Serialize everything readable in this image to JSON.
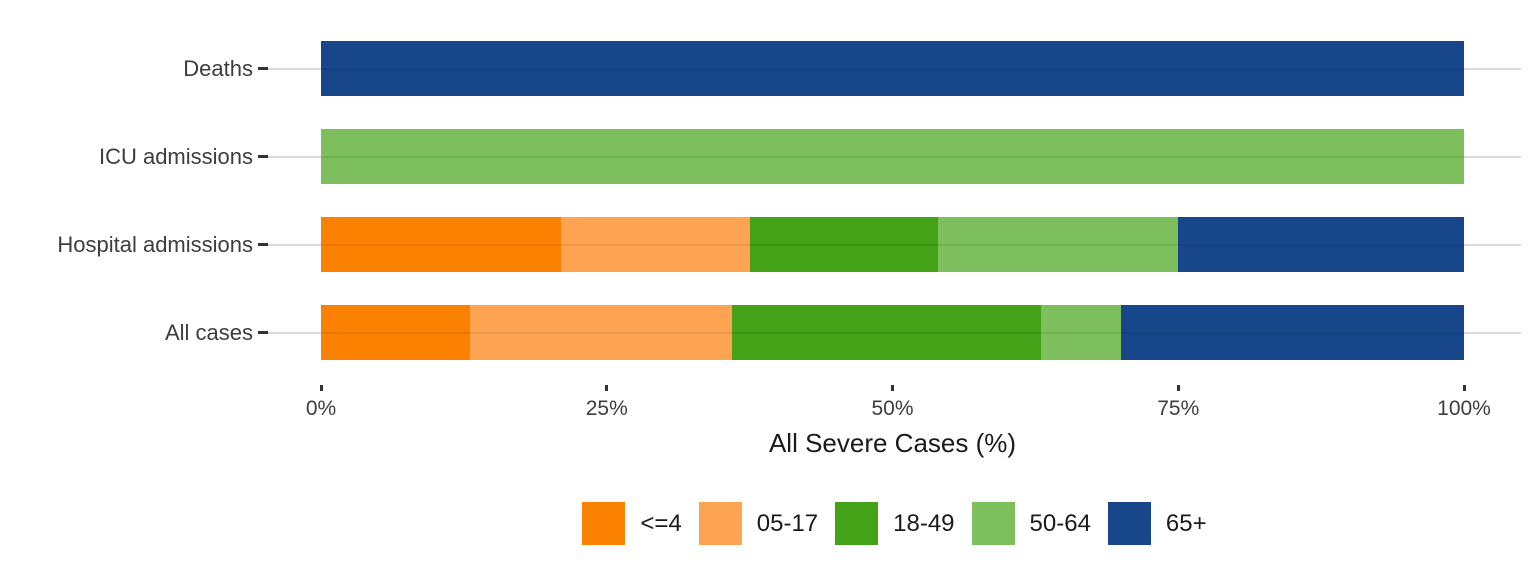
{
  "chart_data": {
    "type": "bar",
    "orientation": "horizontal_stacked",
    "title": "",
    "xlabel": "All Severe Cases (%)",
    "ylabel": "",
    "xlim": [
      0,
      100
    ],
    "x_tick_labels": [
      "0%",
      "25%",
      "50%",
      "75%",
      "100%"
    ],
    "x_tick_values": [
      0,
      25,
      50,
      75,
      100
    ],
    "categories": [
      "Deaths",
      "ICU admissions",
      "Hospital admissions",
      "All cases"
    ],
    "series": [
      {
        "name": "<=4",
        "color": "#FB8200",
        "values": [
          0,
          0,
          21,
          13
        ]
      },
      {
        "name": "05-17",
        "color": "#FDA452",
        "values": [
          0,
          0,
          16.5,
          23
        ]
      },
      {
        "name": "18-49",
        "color": "#43A218",
        "values": [
          0,
          0,
          16.5,
          27
        ]
      },
      {
        "name": "50-64",
        "color": "#7CBF5C",
        "values": [
          0,
          100,
          21,
          7
        ]
      },
      {
        "name": "65+",
        "color": "#17478A",
        "values": [
          100,
          0,
          25,
          30
        ]
      }
    ],
    "legend_position": "bottom",
    "grid": "horizontal_row_gridlines"
  },
  "style_colors": {
    "gridline": "#D9D9D9",
    "tick_mark": "#333333",
    "axis_text": "#3D3D3D",
    "title_text": "#1A1A1A",
    "background": "#FFFFFF"
  }
}
